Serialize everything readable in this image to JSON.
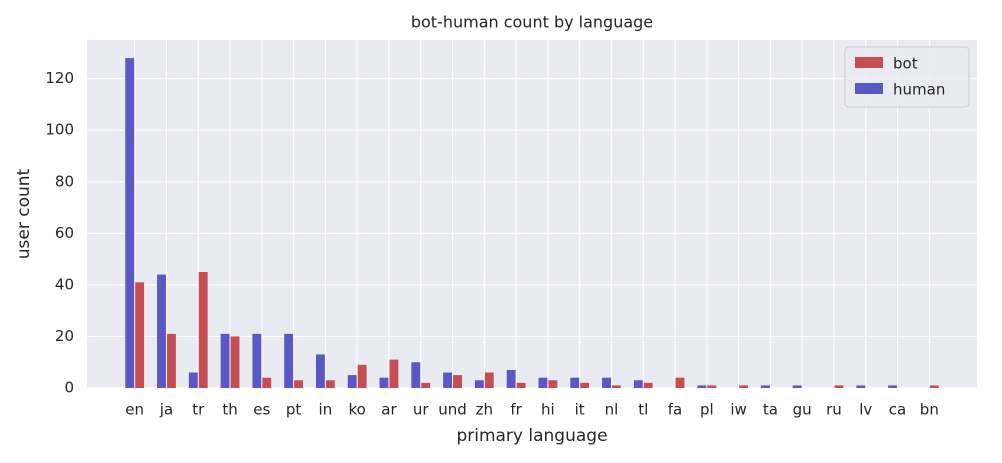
{
  "chart_data": {
    "type": "bar",
    "title": "bot-human count by language",
    "x_label": "primary language",
    "y_label": "user count",
    "categories": [
      "en",
      "ja",
      "tr",
      "th",
      "es",
      "pt",
      "in",
      "ko",
      "ar",
      "ur",
      "und",
      "zh",
      "fr",
      "hi",
      "it",
      "nl",
      "tl",
      "fa",
      "pl",
      "iw",
      "ta",
      "gu",
      "ru",
      "lv",
      "ca",
      "bn"
    ],
    "series": [
      {
        "name": "bot",
        "color": "#c44e52",
        "values": [
          41,
          21,
          45,
          20,
          4,
          3,
          3,
          9,
          11,
          2,
          5,
          6,
          2,
          3,
          2,
          1,
          2,
          4,
          1,
          1,
          0,
          0,
          1,
          0,
          0,
          1
        ]
      },
      {
        "name": "human",
        "color": "#5a58c6",
        "values": [
          128,
          44,
          6,
          21,
          21,
          21,
          13,
          5,
          4,
          10,
          6,
          3,
          7,
          4,
          4,
          4,
          3,
          0,
          1,
          0,
          1,
          1,
          0,
          1,
          1,
          0
        ]
      }
    ],
    "ylim": [
      0,
      135
    ],
    "yticks": [
      0,
      20,
      40,
      60,
      80,
      100,
      120
    ],
    "grid": true,
    "legend": "upper right"
  }
}
